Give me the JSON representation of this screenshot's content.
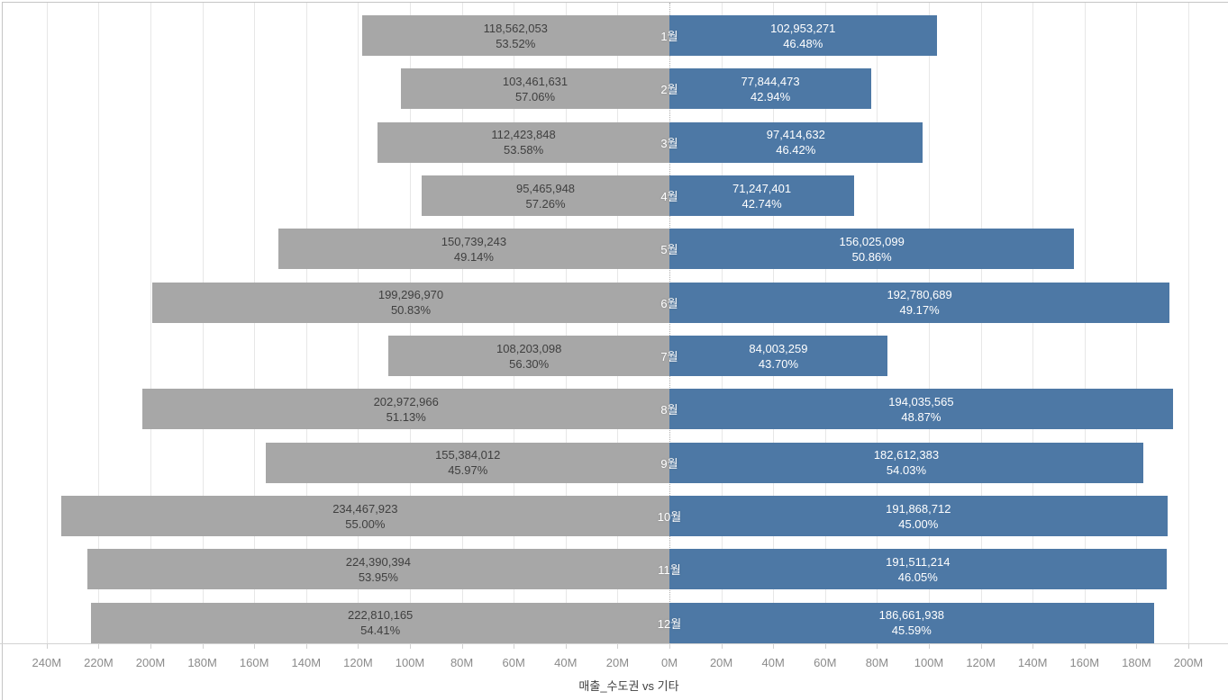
{
  "colors": {
    "left_bar": "#a7a7a7",
    "right_bar": "#4d78a5",
    "left_label_text": "#3f3f3f",
    "right_label_text": "#ffffff",
    "month_label_text": "#ffffff",
    "tick_label_text": "#8b8b8b",
    "gridline": "#e7e7e7",
    "axis_line": "#d2d2d2",
    "zero_line": "#adadad"
  },
  "axis": {
    "title": "매출_수도권 vs 기타"
  },
  "chart_data": {
    "type": "bar",
    "variant": "diverging-horizontal-butterfly",
    "title": "",
    "xlabel": "매출_수도권 vs 기타",
    "ylabel": "",
    "grid": true,
    "legend": "none",
    "categories": [
      "1월",
      "2월",
      "3월",
      "4월",
      "5월",
      "6월",
      "7월",
      "8월",
      "9월",
      "10월",
      "11월",
      "12월"
    ],
    "series": [
      {
        "name": "left",
        "side": "left",
        "color": "#a7a7a7",
        "values": [
          118562053,
          103461631,
          112423848,
          95465948,
          150739243,
          199296970,
          108203098,
          202972966,
          155384012,
          234467923,
          224390394,
          222810165
        ],
        "value_labels": [
          "118,562,053",
          "103,461,631",
          "112,423,848",
          "95,465,948",
          "150,739,243",
          "199,296,970",
          "108,203,098",
          "202,972,966",
          "155,384,012",
          "234,467,923",
          "224,390,394",
          "222,810,165"
        ],
        "pct_labels": [
          "53.52%",
          "57.06%",
          "53.58%",
          "57.26%",
          "49.14%",
          "50.83%",
          "56.30%",
          "51.13%",
          "45.97%",
          "55.00%",
          "53.95%",
          "54.41%"
        ]
      },
      {
        "name": "right",
        "side": "right",
        "color": "#4d78a5",
        "values": [
          102953271,
          77844473,
          97414632,
          71247401,
          156025099,
          192780689,
          84003259,
          194035565,
          182612383,
          191868712,
          191511214,
          186661938
        ],
        "value_labels": [
          "102,953,271",
          "77,844,473",
          "97,414,632",
          "71,247,401",
          "156,025,099",
          "192,780,689",
          "84,003,259",
          "194,035,565",
          "182,612,383",
          "191,868,712",
          "191,511,214",
          "186,661,938"
        ],
        "pct_labels": [
          "46.48%",
          "42.94%",
          "46.42%",
          "42.74%",
          "50.86%",
          "49.17%",
          "43.70%",
          "48.87%",
          "54.03%",
          "45.00%",
          "46.05%",
          "45.59%"
        ]
      }
    ],
    "x_axis": {
      "unit": "M",
      "tick_step_millions": 20,
      "left_max_millions": 240,
      "right_max_millions": 200,
      "tick_values_millions": [
        -240,
        -220,
        -200,
        -180,
        -160,
        -140,
        -120,
        -100,
        -80,
        -60,
        -40,
        -20,
        0,
        20,
        40,
        60,
        80,
        100,
        120,
        140,
        160,
        180,
        200
      ],
      "tick_labels": [
        "240M",
        "220M",
        "200M",
        "180M",
        "160M",
        "140M",
        "120M",
        "100M",
        "80M",
        "60M",
        "40M",
        "20M",
        "0M",
        "20M",
        "40M",
        "60M",
        "80M",
        "100M",
        "120M",
        "140M",
        "160M",
        "180M",
        "200M"
      ]
    }
  }
}
